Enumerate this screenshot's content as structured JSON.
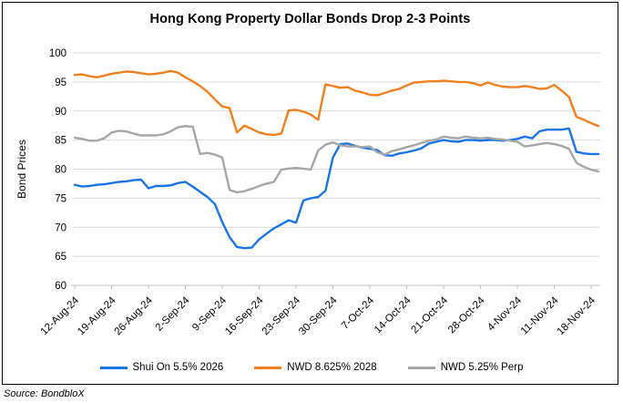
{
  "title": "Hong Kong Property Dollar Bonds Drop 2-3 Points",
  "source_note": "Source: BondbloX",
  "colors": {
    "blue": "#1B74E4",
    "orange": "#F0801E",
    "gray": "#A6A6A6",
    "grid": "#D9D9D9",
    "axis": "#BFBFBF",
    "text": "#000000"
  },
  "chart_data": {
    "type": "line",
    "title": "Hong Kong Property Dollar Bonds Drop 2-3 Points",
    "xlabel": "",
    "ylabel": "Bond Prices",
    "ylim": [
      60,
      100
    ],
    "y_ticks": [
      100,
      95,
      90,
      85,
      80,
      75,
      70,
      65,
      60
    ],
    "grid": true,
    "legend_position": "bottom",
    "x_tick_labels": [
      "12-Aug-24",
      "19-Aug-24",
      "26-Aug-24",
      "2-Sep-24",
      "9-Sep-24",
      "16-Sep-24",
      "23-Sep-24",
      "30-Sep-24",
      "7-Oct-24",
      "14-Oct-24",
      "21-Oct-24",
      "28-Oct-24",
      "4-Nov-24",
      "11-Nov-24",
      "18-Nov-24"
    ],
    "points_per_tick": 5,
    "n_points": 72,
    "series": [
      {
        "name": "Shui On 5.5% 2026",
        "color": "#1B74E4",
        "values": [
          77.3,
          77.0,
          77.1,
          77.3,
          77.4,
          77.6,
          77.8,
          77.9,
          78.1,
          78.2,
          76.7,
          77.1,
          77.1,
          77.2,
          77.6,
          77.8,
          77.0,
          76.1,
          75.2,
          74.0,
          70.9,
          68.3,
          66.6,
          66.4,
          66.5,
          67.9,
          68.9,
          69.8,
          70.5,
          71.2,
          70.8,
          74.6,
          75.0,
          75.2,
          76.3,
          82.0,
          84.3,
          84.4,
          84.0,
          83.7,
          83.5,
          83.3,
          82.4,
          82.3,
          82.7,
          82.9,
          83.2,
          83.6,
          84.4,
          84.7,
          85.0,
          84.8,
          84.7,
          85.0,
          85.0,
          84.9,
          85.0,
          85.0,
          84.9,
          85.0,
          85.2,
          85.6,
          85.3,
          86.5,
          86.8,
          86.8,
          86.8,
          87.0,
          83.0,
          82.7,
          82.6,
          82.6
        ]
      },
      {
        "name": "NWD 8.625% 2028",
        "color": "#F0801E",
        "values": [
          96.2,
          96.3,
          96.0,
          95.8,
          96.1,
          96.4,
          96.6,
          96.8,
          96.7,
          96.5,
          96.3,
          96.4,
          96.6,
          96.9,
          96.6,
          95.8,
          95.1,
          94.3,
          93.3,
          92.0,
          90.8,
          90.5,
          86.3,
          87.5,
          86.9,
          86.3,
          86.0,
          85.9,
          86.1,
          90.1,
          90.2,
          89.9,
          89.4,
          88.5,
          94.6,
          94.3,
          94.0,
          94.1,
          93.5,
          93.2,
          92.8,
          92.7,
          93.1,
          93.5,
          93.8,
          94.4,
          94.9,
          95.0,
          95.1,
          95.1,
          95.2,
          95.1,
          95.0,
          95.0,
          94.8,
          94.4,
          94.9,
          94.5,
          94.2,
          94.1,
          94.1,
          94.3,
          94.1,
          93.8,
          93.9,
          94.5,
          93.5,
          92.4,
          89.0,
          88.5,
          87.9,
          87.4
        ]
      },
      {
        "name": "NWD 5.25% Perp",
        "color": "#A6A6A6",
        "values": [
          85.4,
          85.2,
          84.9,
          84.9,
          85.3,
          86.3,
          86.6,
          86.5,
          86.1,
          85.8,
          85.8,
          85.8,
          86.0,
          86.5,
          87.2,
          87.4,
          87.3,
          82.6,
          82.8,
          82.5,
          82.0,
          76.4,
          76.0,
          76.2,
          76.6,
          77.1,
          77.5,
          77.8,
          79.9,
          80.1,
          80.2,
          80.1,
          79.9,
          83.2,
          84.2,
          84.6,
          84.1,
          83.9,
          83.9,
          83.8,
          83.9,
          82.9,
          82.5,
          83.1,
          83.4,
          83.8,
          84.1,
          84.5,
          84.9,
          85.1,
          85.6,
          85.4,
          85.3,
          85.6,
          85.4,
          85.3,
          85.4,
          85.2,
          85.1,
          84.9,
          84.7,
          83.9,
          84.1,
          84.3,
          84.5,
          84.3,
          84.0,
          83.5,
          81.1,
          80.4,
          79.9,
          79.6
        ]
      }
    ]
  }
}
